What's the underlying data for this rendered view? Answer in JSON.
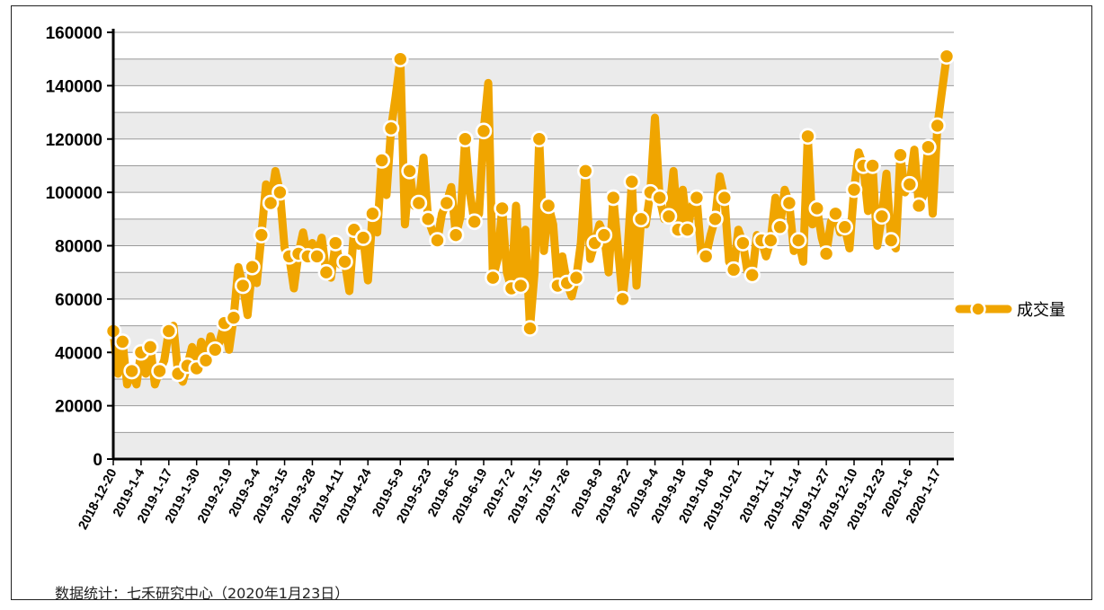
{
  "source_note": "数据统计：七禾研究中心（2020年1月23日）",
  "chart_data": {
    "type": "line",
    "title": "",
    "xlabel": "",
    "ylabel": "",
    "ylim": [
      0,
      160000
    ],
    "yticks": [
      0,
      20000,
      40000,
      60000,
      80000,
      100000,
      120000,
      140000,
      160000
    ],
    "grid": "horizontal",
    "legend_position": "right",
    "series": [
      {
        "name": "成交量",
        "color": "#F0A500",
        "markers_at_every": 2,
        "values": [
          48000,
          32000,
          44000,
          28000,
          33000,
          28000,
          40000,
          32000,
          42000,
          28000,
          33000,
          37000,
          48000,
          50000,
          32000,
          29000,
          35000,
          42000,
          34000,
          44000,
          37000,
          46000,
          41000,
          44000,
          51000,
          41000,
          53000,
          72000,
          65000,
          54000,
          72000,
          66000,
          84000,
          103000,
          96000,
          108000,
          100000,
          79000,
          76000,
          64000,
          77000,
          85000,
          76000,
          81000,
          76000,
          83000,
          70000,
          68000,
          81000,
          73000,
          74000,
          63000,
          86000,
          80000,
          83000,
          67000,
          92000,
          85000,
          112000,
          99000,
          124000,
          136000,
          150000,
          88000,
          108000,
          95000,
          96000,
          113000,
          90000,
          85000,
          82000,
          92000,
          96000,
          102000,
          84000,
          91000,
          120000,
          100000,
          89000,
          92000,
          123000,
          141000,
          68000,
          75000,
          94000,
          70000,
          64000,
          95000,
          65000,
          86000,
          49000,
          70000,
          120000,
          78000,
          95000,
          88000,
          65000,
          76000,
          66000,
          61000,
          68000,
          81000,
          108000,
          75000,
          81000,
          88000,
          84000,
          70000,
          98000,
          79000,
          60000,
          75000,
          104000,
          65000,
          90000,
          88000,
          100000,
          128000,
          98000,
          90000,
          91000,
          108000,
          86000,
          101000,
          86000,
          95000,
          98000,
          77000,
          76000,
          84000,
          90000,
          106000,
          98000,
          74000,
          71000,
          86000,
          81000,
          70000,
          69000,
          84000,
          82000,
          76000,
          82000,
          98000,
          87000,
          101000,
          96000,
          78000,
          82000,
          74000,
          121000,
          88000,
          94000,
          83000,
          77000,
          89000,
          92000,
          85000,
          87000,
          79000,
          101000,
          115000,
          110000,
          93000,
          110000,
          80000,
          91000,
          107000,
          82000,
          79000,
          114000,
          100000,
          103000,
          116000,
          95000,
          99000,
          117000,
          92000,
          125000,
          138000,
          151000
        ]
      }
    ],
    "x_tick_labels": [
      "2018-12-20",
      "2019-1-4",
      "2019-1-17",
      "2019-1-30",
      "2019-2-19",
      "2019-3-4",
      "2019-3-15",
      "2019-3-28",
      "2019-4-11",
      "2019-4-24",
      "2019-5-9",
      "2019-5-23",
      "2019-6-5",
      "2019-6-19",
      "2019-7-2",
      "2019-7-15",
      "2019-7-26",
      "2019-8-9",
      "2019-8-22",
      "2019-9-4",
      "2019-9-18",
      "2019-10-8",
      "2019-10-21",
      "2019-11-1",
      "2019-11-14",
      "2019-11-27",
      "2019-12-10",
      "2019-12-23",
      "2020-1-6",
      "2020-1-17"
    ]
  }
}
